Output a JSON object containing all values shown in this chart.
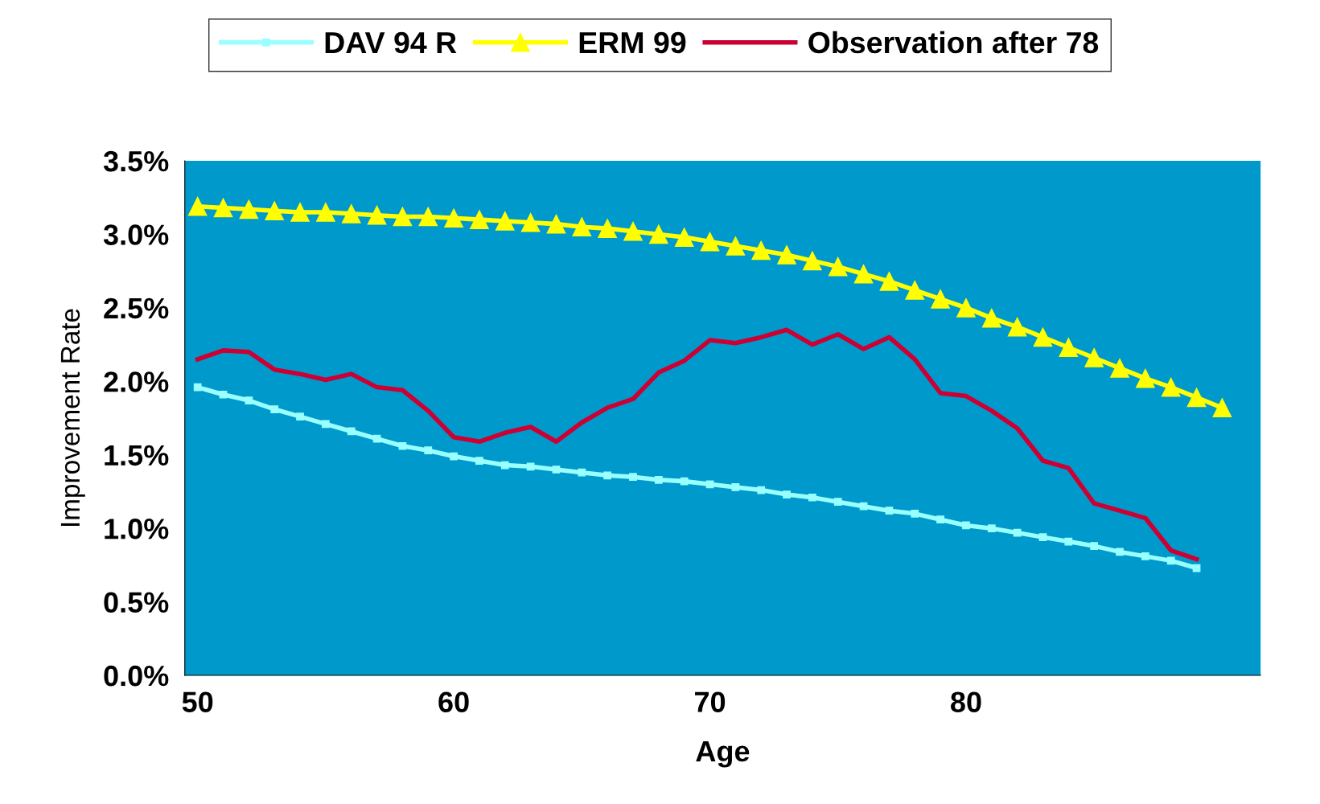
{
  "chart_data": {
    "type": "line",
    "xlabel": "Age",
    "ylabel": "Improvement Rate",
    "xlim": [
      49.5,
      91.5
    ],
    "xticks": [
      50,
      60,
      70,
      80
    ],
    "ylim": [
      0,
      3.5
    ],
    "yticks": [
      {
        "value": 0,
        "label": "0.0%"
      },
      {
        "value": 0.5,
        "label": "0.5%"
      },
      {
        "value": 1,
        "label": "1.0%"
      },
      {
        "value": 1.5,
        "label": "1.5%"
      },
      {
        "value": 2,
        "label": "2.0%"
      },
      {
        "value": 2.5,
        "label": "2.5%"
      },
      {
        "value": 3,
        "label": "3.0%"
      },
      {
        "value": 3.5,
        "label": "3.5%"
      }
    ],
    "grid": false,
    "legend": "top",
    "series": [
      {
        "name": "DAV 94 R",
        "color": "#99ffff",
        "marker": "square",
        "x": [
          50,
          51,
          52,
          53,
          54,
          55,
          56,
          57,
          58,
          59,
          60,
          61,
          62,
          63,
          64,
          65,
          66,
          67,
          68,
          69,
          70,
          71,
          72,
          73,
          74,
          75,
          76,
          77,
          78,
          79,
          80,
          81,
          82,
          83,
          84,
          85,
          86,
          87,
          88,
          89
        ],
        "values": [
          1.96,
          1.91,
          1.87,
          1.81,
          1.76,
          1.71,
          1.66,
          1.61,
          1.56,
          1.53,
          1.49,
          1.46,
          1.43,
          1.42,
          1.4,
          1.38,
          1.36,
          1.35,
          1.33,
          1.32,
          1.3,
          1.28,
          1.26,
          1.23,
          1.21,
          1.18,
          1.15,
          1.12,
          1.1,
          1.06,
          1.02,
          1.0,
          0.97,
          0.94,
          0.91,
          0.88,
          0.84,
          0.81,
          0.78,
          0.73
        ]
      },
      {
        "name": "ERM 99",
        "color": "#ffff00",
        "marker": "triangle",
        "x": [
          50,
          51,
          52,
          53,
          54,
          55,
          56,
          57,
          58,
          59,
          60,
          61,
          62,
          63,
          64,
          65,
          66,
          67,
          68,
          69,
          70,
          71,
          72,
          73,
          74,
          75,
          76,
          77,
          78,
          79,
          80,
          81,
          82,
          83,
          84,
          85,
          86,
          87,
          88,
          89,
          90
        ],
        "values": [
          3.19,
          3.18,
          3.17,
          3.16,
          3.15,
          3.15,
          3.14,
          3.13,
          3.12,
          3.12,
          3.11,
          3.1,
          3.09,
          3.08,
          3.07,
          3.05,
          3.04,
          3.02,
          3.0,
          2.98,
          2.95,
          2.92,
          2.89,
          2.86,
          2.82,
          2.78,
          2.73,
          2.68,
          2.62,
          2.56,
          2.5,
          2.43,
          2.37,
          2.3,
          2.23,
          2.16,
          2.09,
          2.02,
          1.96,
          1.89,
          1.82
        ]
      },
      {
        "name": "Observation after 78",
        "color": "#cc0033",
        "marker": "none",
        "x": [
          50,
          51,
          52,
          53,
          54,
          55,
          56,
          57,
          58,
          59,
          60,
          61,
          62,
          63,
          64,
          65,
          66,
          67,
          68,
          69,
          70,
          71,
          72,
          73,
          74,
          75,
          76,
          77,
          78,
          79,
          80,
          81,
          82,
          83,
          84,
          85,
          86,
          87,
          88,
          89
        ],
        "values": [
          2.15,
          2.21,
          2.2,
          2.08,
          2.05,
          2.01,
          2.05,
          1.96,
          1.94,
          1.8,
          1.62,
          1.59,
          1.65,
          1.69,
          1.59,
          1.72,
          1.82,
          1.88,
          2.06,
          2.14,
          2.28,
          2.26,
          2.3,
          2.35,
          2.25,
          2.32,
          2.22,
          2.3,
          2.15,
          1.92,
          1.9,
          1.8,
          1.68,
          1.46,
          1.41,
          1.17,
          1.12,
          1.07,
          0.85,
          0.79
        ]
      }
    ]
  }
}
